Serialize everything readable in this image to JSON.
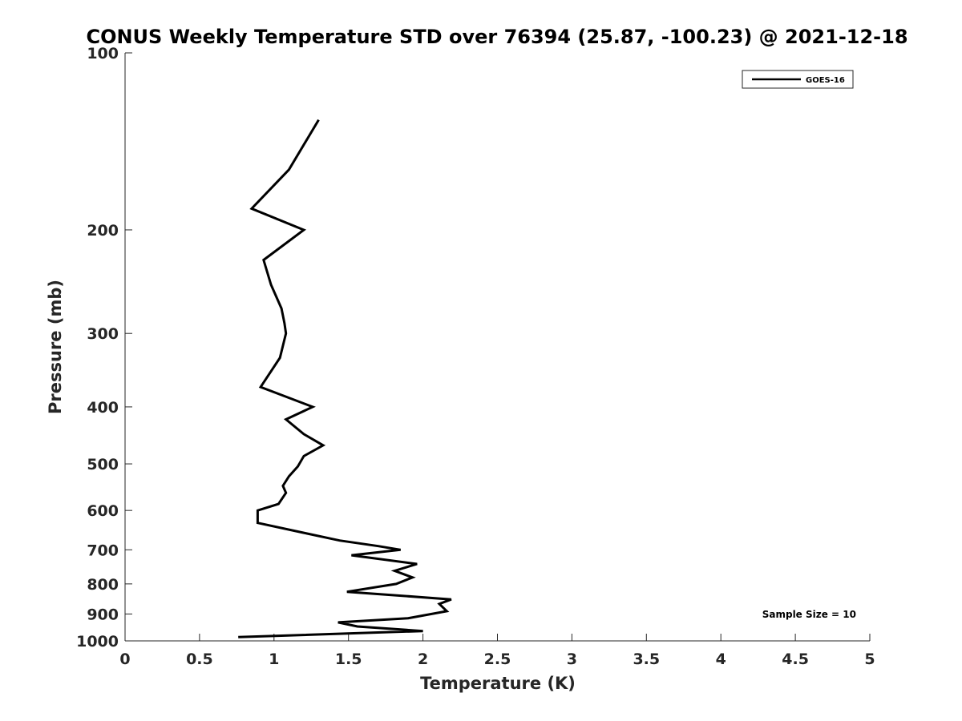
{
  "chart_data": {
    "type": "line",
    "title": "CONUS Weekly Temperature STD over 76394 (25.87, -100.23) @ 2021-12-18",
    "xlabel": "Temperature (K)",
    "ylabel": "Pressure (mb)",
    "xlim": [
      0,
      5
    ],
    "ylim": [
      100,
      1000
    ],
    "y_scale": "log",
    "y_reversed": true,
    "grid": false,
    "legend_position": "top-right",
    "x_ticks": [
      "0",
      "0.5",
      "1",
      "1.5",
      "2",
      "2.5",
      "3",
      "3.5",
      "4",
      "4.5",
      "5"
    ],
    "y_ticks": [
      "100",
      "200",
      "300",
      "400",
      "500",
      "600",
      "700",
      "800",
      "900",
      "1000"
    ],
    "annotation": "Sample Size = 10",
    "series": [
      {
        "name": "GOES-16",
        "color": "#000000",
        "points": [
          [
            1.3,
            130
          ],
          [
            1.1,
            158
          ],
          [
            0.85,
            184
          ],
          [
            1.2,
            200
          ],
          [
            0.93,
            225
          ],
          [
            0.98,
            248
          ],
          [
            1.05,
            272
          ],
          [
            1.07,
            288
          ],
          [
            1.08,
            300
          ],
          [
            1.04,
            330
          ],
          [
            0.91,
            370
          ],
          [
            1.26,
            400
          ],
          [
            1.08,
            420
          ],
          [
            1.2,
            445
          ],
          [
            1.33,
            465
          ],
          [
            1.2,
            485
          ],
          [
            1.16,
            505
          ],
          [
            1.1,
            525
          ],
          [
            1.06,
            545
          ],
          [
            1.08,
            560
          ],
          [
            1.03,
            585
          ],
          [
            0.89,
            600
          ],
          [
            0.89,
            630
          ],
          [
            1.2,
            655
          ],
          [
            1.44,
            675
          ],
          [
            1.7,
            690
          ],
          [
            1.85,
            700
          ],
          [
            1.52,
            715
          ],
          [
            1.96,
            740
          ],
          [
            1.81,
            760
          ],
          [
            1.93,
            780
          ],
          [
            1.82,
            800
          ],
          [
            1.49,
            825
          ],
          [
            2.19,
            850
          ],
          [
            2.11,
            865
          ],
          [
            2.16,
            890
          ],
          [
            1.9,
            915
          ],
          [
            1.43,
            930
          ],
          [
            1.56,
            945
          ],
          [
            2.0,
            962
          ],
          [
            0.76,
            985
          ]
        ]
      }
    ]
  }
}
